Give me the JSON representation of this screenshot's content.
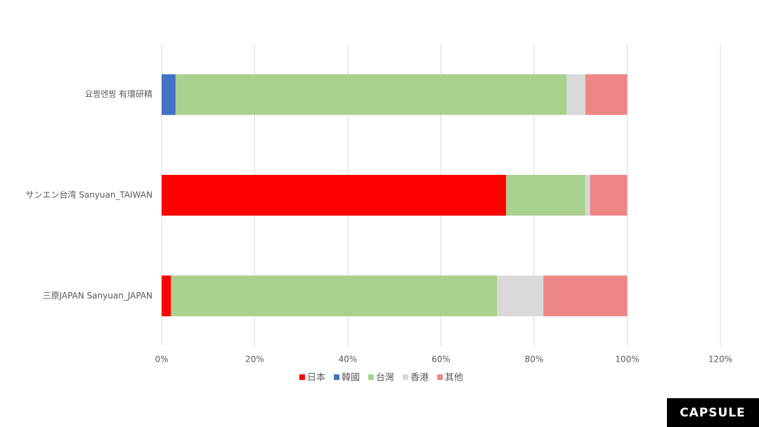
{
  "chart_data": {
    "type": "stacked-bar-horizontal",
    "categories": [
      "요찡엔찡 有環研精",
      "サンエン台湾 Sanyuan_TAIWAN",
      "三原JAPAN Sanyuan_JAPAN"
    ],
    "series": [
      {
        "name": "日本",
        "color": "#ff0000",
        "values": [
          0,
          74,
          2
        ]
      },
      {
        "name": "韓國",
        "color": "#4472c4",
        "values": [
          3,
          0,
          0
        ]
      },
      {
        "name": "台灣",
        "color": "#a9d18e",
        "values": [
          84,
          17,
          70
        ]
      },
      {
        "name": "香港",
        "color": "#d9d9d9",
        "values": [
          4,
          1,
          10
        ]
      },
      {
        "name": "其他",
        "color": "#ee8686",
        "values": [
          9,
          8,
          18
        ]
      }
    ],
    "xlim": [
      0,
      120
    ],
    "xticks": [
      {
        "value": 0,
        "label": "0%"
      },
      {
        "value": 20,
        "label": "20%"
      },
      {
        "value": 40,
        "label": "40%"
      },
      {
        "value": 60,
        "label": "60%"
      },
      {
        "value": 80,
        "label": "80%"
      },
      {
        "value": 100,
        "label": "100%"
      },
      {
        "value": 120,
        "label": "120%"
      }
    ],
    "grid": true,
    "legend": "bottom"
  },
  "logo": "CAPSULE"
}
